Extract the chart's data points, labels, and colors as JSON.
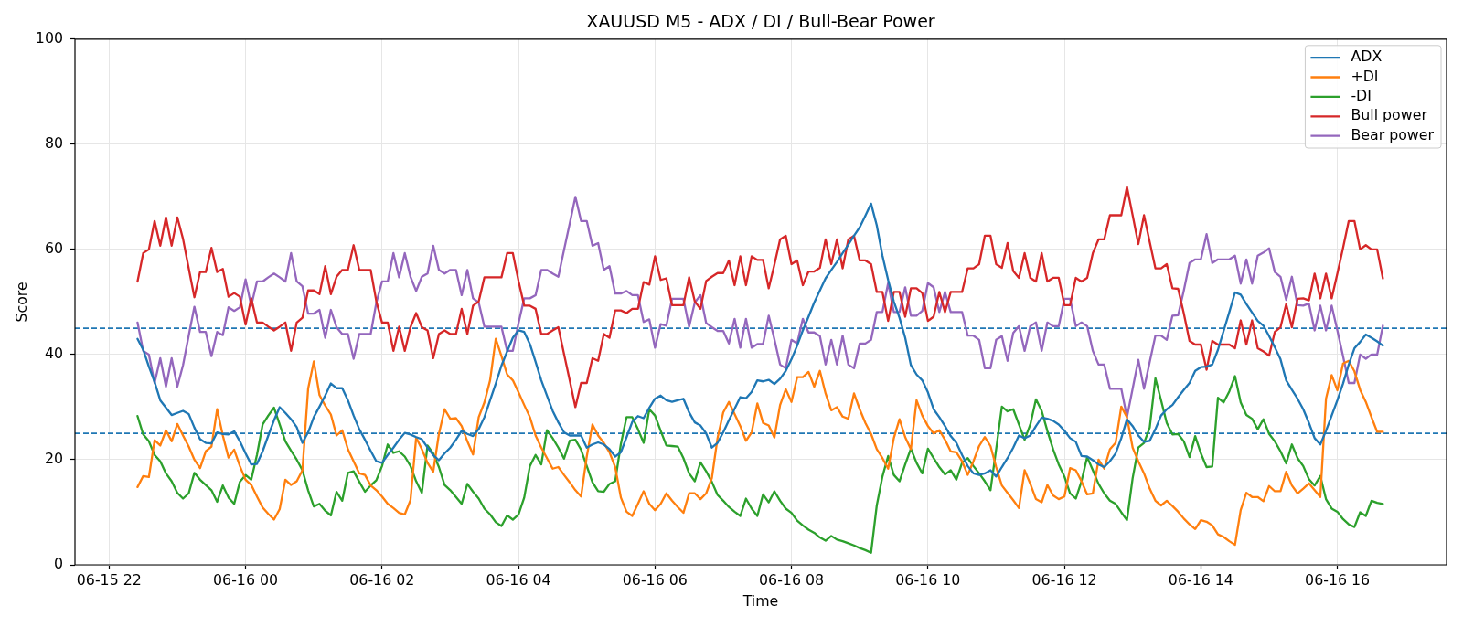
{
  "chart_data": {
    "type": "line",
    "title": "XAUUSD M5 - ADX / DI / Bull-Bear Power",
    "xlabel": "Time",
    "ylabel": "Score",
    "x": [
      "--06-15T22:25",
      "--06-15T22:30",
      "--06-15T22:35",
      "--06-15T22:40",
      "--06-15T22:45",
      "--06-15T22:50",
      "--06-15T22:55",
      "--06-15T23:00",
      "--06-15T23:05",
      "--06-15T23:10",
      "--06-15T23:15",
      "--06-15T23:20",
      "--06-15T23:25",
      "--06-15T23:30",
      "--06-15T23:35",
      "--06-15T23:40",
      "--06-15T23:45",
      "--06-15T23:50",
      "--06-15T23:55",
      "--06-16T00:00",
      "--06-16T00:05",
      "--06-16T00:10",
      "--06-16T00:15",
      "--06-16T00:20",
      "--06-16T00:25",
      "--06-16T00:30",
      "--06-16T00:35",
      "--06-16T00:40",
      "--06-16T00:45",
      "--06-16T00:50",
      "--06-16T00:55",
      "--06-16T01:00",
      "--06-16T01:05",
      "--06-16T01:10",
      "--06-16T01:15",
      "--06-16T01:20",
      "--06-16T01:25",
      "--06-16T01:30",
      "--06-16T01:35",
      "--06-16T01:40",
      "--06-16T01:45",
      "--06-16T01:50",
      "--06-16T01:55",
      "--06-16T02:00",
      "--06-16T02:05",
      "--06-16T02:10",
      "--06-16T02:15",
      "--06-16T02:20",
      "--06-16T02:25",
      "--06-16T02:30",
      "--06-16T02:35",
      "--06-16T02:40",
      "--06-16T02:45",
      "--06-16T02:50",
      "--06-16T02:55",
      "--06-16T03:00",
      "--06-16T03:05",
      "--06-16T03:10",
      "--06-16T03:15",
      "--06-16T03:20",
      "--06-16T03:25",
      "--06-16T03:30",
      "--06-16T03:35",
      "--06-16T03:40",
      "--06-16T03:45",
      "--06-16T03:50",
      "--06-16T03:55",
      "--06-16T04:00",
      "--06-16T04:05",
      "--06-16T04:10",
      "--06-16T04:15",
      "--06-16T04:20",
      "--06-16T04:25",
      "--06-16T04:30",
      "--06-16T04:35",
      "--06-16T04:40",
      "--06-16T04:45",
      "--06-16T04:50",
      "--06-16T04:55",
      "--06-16T05:00",
      "--06-16T05:05",
      "--06-16T05:10",
      "--06-16T05:15",
      "--06-16T05:20",
      "--06-16T05:25",
      "--06-16T05:30",
      "--06-16T05:35",
      "--06-16T05:40",
      "--06-16T05:45",
      "--06-16T05:50",
      "--06-16T05:55",
      "--06-16T06:00",
      "--06-16T06:05",
      "--06-16T06:10",
      "--06-16T06:15",
      "--06-16T06:20",
      "--06-16T06:25",
      "--06-16T06:30",
      "--06-16T06:35",
      "--06-16T06:40",
      "--06-16T06:45",
      "--06-16T06:50",
      "--06-16T06:55",
      "--06-16T07:00",
      "--06-16T07:05",
      "--06-16T07:10",
      "--06-16T07:15",
      "--06-16T07:20",
      "--06-16T07:25",
      "--06-16T07:30",
      "--06-16T07:35",
      "--06-16T07:40",
      "--06-16T07:45",
      "--06-16T07:50",
      "--06-16T07:55",
      "--06-16T08:00",
      "--06-16T08:05",
      "--06-16T08:10",
      "--06-16T08:15",
      "--06-16T08:20",
      "--06-16T08:25",
      "--06-16T08:30",
      "--06-16T08:35",
      "--06-16T08:40",
      "--06-16T08:45",
      "--06-16T08:50",
      "--06-16T08:55",
      "--06-16T09:00",
      "--06-16T09:05",
      "--06-16T09:10",
      "--06-16T09:15",
      "--06-16T09:20",
      "--06-16T09:25",
      "--06-16T09:30",
      "--06-16T09:35",
      "--06-16T09:40",
      "--06-16T09:45",
      "--06-16T09:50",
      "--06-16T09:55",
      "--06-16T10:00",
      "--06-16T10:05",
      "--06-16T10:10",
      "--06-16T10:15",
      "--06-16T10:20",
      "--06-16T10:25",
      "--06-16T10:30",
      "--06-16T10:35",
      "--06-16T10:40",
      "--06-16T10:45",
      "--06-16T10:50",
      "--06-16T10:55",
      "--06-16T11:00",
      "--06-16T11:05",
      "--06-16T11:10",
      "--06-16T11:15",
      "--06-16T11:20",
      "--06-16T11:25",
      "--06-16T11:30",
      "--06-16T11:35",
      "--06-16T11:40",
      "--06-16T11:45",
      "--06-16T11:50",
      "--06-16T11:55",
      "--06-16T12:00",
      "--06-16T12:05",
      "--06-16T12:10",
      "--06-16T12:15",
      "--06-16T12:20",
      "--06-16T12:25",
      "--06-16T12:30",
      "--06-16T12:35",
      "--06-16T12:40",
      "--06-16T12:45",
      "--06-16T12:50",
      "--06-16T12:55",
      "--06-16T13:00",
      "--06-16T13:05",
      "--06-16T13:10",
      "--06-16T13:15",
      "--06-16T13:20",
      "--06-16T13:25",
      "--06-16T13:30",
      "--06-16T13:35",
      "--06-16T13:40",
      "--06-16T13:45",
      "--06-16T13:50",
      "--06-16T13:55",
      "--06-16T14:00",
      "--06-16T14:05",
      "--06-16T14:10",
      "--06-16T14:15",
      "--06-16T14:20",
      "--06-16T14:25",
      "--06-16T14:30",
      "--06-16T14:35",
      "--06-16T14:40",
      "--06-16T14:45",
      "--06-16T14:50",
      "--06-16T14:55",
      "--06-16T15:00",
      "--06-16T15:05",
      "--06-16T15:10",
      "--06-16T15:15",
      "--06-16T15:20",
      "--06-16T15:25",
      "--06-16T15:30",
      "--06-16T15:35",
      "--06-16T15:40",
      "--06-16T15:45",
      "--06-16T15:50",
      "--06-16T15:55",
      "--06-16T16:00",
      "--06-16T16:05",
      "--06-16T16:10",
      "--06-16T16:15",
      "--06-16T16:20",
      "--06-16T16:25",
      "--06-16T16:30",
      "--06-16T16:35",
      "--06-16T16:40"
    ],
    "series": [
      {
        "name": "ADX",
        "color": "#1f77b4",
        "values": [
          43.0,
          40.9,
          37.7,
          34.8,
          31.3,
          29.9,
          28.5,
          28.9,
          29.3,
          28.7,
          26.1,
          23.9,
          23.2,
          23.1,
          25.2,
          24.9,
          24.8,
          25.4,
          23.5,
          21.2,
          19.1,
          19.2,
          21.6,
          24.6,
          27.5,
          30.0,
          28.9,
          27.7,
          26.2,
          23.2,
          25.2,
          28.1,
          30.1,
          32.2,
          34.5,
          33.6,
          33.6,
          31.3,
          28.4,
          25.8,
          23.8,
          21.7,
          19.7,
          19.4,
          20.9,
          22.3,
          23.8,
          25.1,
          24.8,
          24.3,
          23.9,
          22.3,
          20.9,
          19.9,
          21.2,
          22.3,
          23.8,
          25.5,
          24.9,
          24.5,
          25.8,
          28.1,
          31.3,
          34.5,
          37.9,
          40.6,
          43.2,
          44.6,
          44.3,
          42.0,
          38.6,
          35.1,
          32.2,
          29.3,
          27.1,
          25.2,
          24.6,
          24.6,
          24.6,
          22.3,
          22.9,
          23.3,
          22.9,
          22.0,
          20.6,
          21.4,
          24.3,
          27.2,
          28.3,
          27.9,
          29.9,
          31.6,
          32.2,
          31.3,
          31.0,
          31.3,
          31.6,
          29.0,
          27.1,
          26.5,
          25.0,
          22.3,
          23.2,
          25.2,
          27.5,
          29.7,
          31.9,
          31.7,
          32.9,
          35.1,
          34.9,
          35.2,
          34.4,
          35.4,
          36.9,
          39.1,
          41.7,
          44.6,
          47.2,
          49.9,
          52.2,
          54.5,
          56.1,
          57.6,
          59.3,
          60.9,
          62.6,
          64.2,
          66.4,
          68.7,
          64.6,
          58.8,
          54.2,
          50.1,
          47.0,
          43.2,
          38.0,
          36.2,
          35.1,
          32.8,
          29.6,
          28.1,
          26.4,
          24.5,
          23.2,
          20.9,
          18.8,
          17.4,
          17.1,
          17.4,
          18.0,
          16.8,
          18.6,
          20.3,
          22.3,
          24.6,
          24.1,
          24.6,
          26.4,
          28.0,
          27.8,
          27.4,
          26.7,
          25.5,
          24.1,
          23.4,
          20.7,
          20.6,
          19.9,
          19.1,
          18.6,
          19.7,
          21.2,
          24.1,
          27.7,
          26.4,
          24.6,
          23.4,
          23.6,
          25.8,
          28.4,
          29.6,
          30.4,
          31.9,
          33.3,
          34.6,
          36.9,
          37.6,
          37.7,
          38.1,
          40.9,
          44.5,
          48.1,
          51.8,
          51.4,
          49.6,
          48.0,
          46.4,
          45.5,
          43.5,
          41.4,
          39.1,
          35.1,
          33.3,
          31.6,
          29.6,
          27.0,
          24.1,
          22.9,
          25.5,
          28.4,
          31.3,
          34.5,
          38.1,
          41.2,
          42.4,
          43.8,
          43.2,
          42.5,
          41.7
        ]
      },
      {
        "name": "+DI",
        "color": "#ff7f0e",
        "values": [
          14.8,
          16.9,
          16.7,
          23.7,
          22.7,
          25.6,
          23.5,
          26.8,
          24.6,
          22.5,
          20.0,
          18.4,
          21.6,
          22.5,
          29.6,
          24.6,
          20.4,
          21.9,
          18.8,
          16.2,
          15.2,
          13.0,
          10.9,
          9.7,
          8.6,
          10.6,
          16.2,
          15.2,
          15.9,
          18.0,
          33.5,
          38.7,
          32.3,
          30.3,
          28.6,
          24.6,
          25.6,
          22.0,
          19.7,
          17.4,
          17.1,
          15.1,
          14.2,
          13.0,
          11.6,
          10.8,
          9.9,
          9.6,
          12.3,
          24.2,
          22.0,
          19.4,
          17.7,
          24.9,
          29.6,
          27.8,
          27.9,
          26.4,
          23.5,
          21.0,
          28.1,
          30.9,
          35.1,
          43.0,
          39.7,
          36.2,
          35.1,
          32.8,
          30.4,
          28.1,
          24.6,
          22.3,
          20.3,
          18.3,
          18.6,
          17.1,
          15.7,
          14.2,
          13.0,
          20.6,
          26.7,
          24.6,
          23.2,
          21.4,
          18.6,
          12.8,
          10.1,
          9.3,
          11.6,
          14.0,
          11.6,
          10.4,
          11.6,
          13.6,
          12.2,
          11.0,
          9.9,
          13.6,
          13.6,
          12.5,
          13.6,
          16.5,
          24.1,
          29.0,
          31.0,
          28.7,
          26.4,
          23.6,
          25.2,
          30.7,
          27.0,
          26.5,
          24.2,
          30.4,
          33.4,
          31.0,
          35.7,
          35.7,
          36.7,
          33.9,
          36.9,
          32.6,
          29.4,
          30.0,
          28.2,
          27.8,
          32.6,
          29.6,
          27.0,
          24.9,
          22.0,
          20.3,
          18.3,
          24.1,
          27.7,
          24.3,
          22.0,
          31.3,
          28.4,
          26.4,
          25.0,
          25.6,
          23.8,
          21.6,
          21.4,
          19.7,
          17.1,
          19.7,
          22.6,
          24.3,
          22.6,
          18.6,
          15.1,
          13.7,
          12.3,
          10.8,
          18.0,
          15.4,
          12.5,
          11.9,
          15.2,
          13.2,
          12.5,
          13.0,
          18.4,
          18.0,
          15.9,
          13.4,
          13.6,
          20.0,
          18.3,
          22.0,
          23.2,
          30.1,
          28.1,
          22.3,
          19.7,
          17.4,
          14.5,
          12.2,
          11.3,
          12.2,
          11.2,
          10.1,
          8.8,
          7.7,
          6.8,
          8.5,
          8.2,
          7.5,
          5.8,
          5.3,
          4.5,
          3.8,
          10.4,
          13.7,
          12.9,
          12.9,
          12.1,
          15.0,
          14.0,
          14.0,
          17.7,
          15.1,
          13.6,
          14.5,
          15.5,
          14.2,
          12.9,
          31.6,
          36.1,
          33.2,
          38.3,
          38.8,
          36.8,
          33.3,
          31.0,
          28.1,
          25.3,
          25.3
        ]
      },
      {
        "name": "-DI",
        "color": "#2ca02c",
        "values": [
          28.3,
          24.8,
          23.5,
          20.9,
          19.7,
          17.4,
          15.9,
          13.7,
          12.6,
          13.6,
          17.5,
          16.2,
          15.2,
          14.2,
          12.0,
          15.1,
          12.8,
          11.6,
          15.8,
          17.1,
          16.2,
          20.9,
          26.7,
          28.4,
          29.9,
          26.7,
          23.5,
          21.7,
          20.0,
          18.0,
          14.2,
          11.1,
          11.6,
          10.3,
          9.4,
          13.9,
          12.2,
          17.5,
          17.8,
          15.8,
          13.9,
          15.1,
          16.1,
          18.8,
          22.9,
          21.3,
          21.6,
          20.6,
          18.8,
          15.9,
          13.7,
          22.7,
          21.2,
          18.6,
          15.2,
          14.2,
          12.9,
          11.6,
          15.4,
          13.9,
          12.6,
          10.7,
          9.6,
          8.1,
          7.4,
          9.4,
          8.6,
          9.6,
          12.8,
          18.8,
          20.9,
          19.1,
          25.6,
          24.1,
          22.3,
          20.2,
          23.6,
          23.8,
          21.9,
          18.8,
          15.7,
          14.0,
          13.9,
          15.4,
          15.9,
          23.0,
          28.1,
          28.1,
          25.8,
          23.2,
          29.6,
          28.4,
          25.5,
          22.7,
          22.6,
          22.5,
          20.3,
          17.4,
          15.9,
          19.5,
          17.8,
          15.8,
          13.3,
          12.2,
          11.0,
          10.1,
          9.3,
          12.6,
          10.7,
          9.3,
          13.4,
          11.9,
          14.0,
          12.2,
          10.7,
          9.9,
          8.4,
          7.5,
          6.7,
          6.1,
          5.2,
          4.6,
          5.5,
          4.8,
          4.5,
          4.1,
          3.7,
          3.2,
          2.8,
          2.3,
          11.3,
          16.8,
          20.7,
          17.1,
          15.9,
          19.1,
          22.1,
          19.4,
          17.4,
          22.1,
          20.3,
          18.6,
          17.2,
          18.0,
          16.2,
          19.4,
          20.3,
          18.8,
          17.4,
          15.9,
          14.2,
          22.0,
          30.1,
          29.2,
          29.6,
          26.7,
          23.8,
          26.7,
          31.5,
          29.3,
          25.5,
          22.0,
          19.1,
          16.8,
          13.6,
          12.6,
          15.9,
          20.5,
          18.0,
          15.4,
          13.6,
          12.2,
          11.6,
          10.0,
          8.5,
          16.5,
          22.3,
          23.2,
          26.1,
          35.5,
          31.3,
          27.0,
          24.8,
          24.9,
          23.5,
          20.5,
          24.5,
          21.2,
          18.6,
          18.7,
          31.8,
          30.9,
          33.0,
          35.9,
          30.9,
          28.5,
          27.8,
          25.8,
          27.7,
          24.9,
          23.5,
          21.6,
          19.3,
          22.9,
          20.3,
          18.8,
          16.3,
          15.1,
          16.9,
          12.5,
          10.7,
          10.1,
          8.7,
          7.7,
          7.2,
          10.0,
          9.3,
          12.2,
          11.8,
          11.6
        ]
      },
      {
        "name": "Bull power",
        "color": "#d62728",
        "values": [
          53.9,
          59.3,
          60.0,
          65.4,
          60.7,
          66.1,
          60.7,
          66.1,
          62.0,
          56.4,
          50.9,
          55.7,
          55.7,
          60.3,
          55.7,
          56.3,
          51.0,
          51.7,
          51.0,
          45.7,
          50.7,
          46.1,
          46.1,
          45.3,
          44.6,
          45.3,
          46.1,
          40.7,
          46.1,
          47.0,
          52.2,
          52.2,
          51.5,
          56.8,
          51.5,
          54.8,
          56.1,
          56.1,
          60.8,
          56.1,
          56.1,
          56.1,
          50.1,
          46.1,
          46.1,
          40.7,
          45.3,
          40.7,
          45.2,
          47.9,
          45.2,
          44.6,
          39.3,
          43.9,
          44.6,
          43.9,
          43.9,
          48.7,
          43.9,
          49.3,
          50.1,
          54.7,
          54.7,
          54.7,
          54.7,
          59.3,
          59.3,
          54.0,
          49.3,
          49.3,
          48.7,
          43.9,
          43.9,
          44.6,
          45.2,
          40.1,
          35.1,
          30.0,
          34.6,
          34.6,
          39.3,
          38.8,
          43.9,
          43.2,
          48.4,
          48.4,
          47.9,
          48.7,
          48.7,
          53.8,
          53.3,
          58.7,
          54.2,
          54.5,
          49.4,
          49.4,
          49.4,
          54.7,
          50.1,
          48.7,
          54.0,
          54.8,
          55.5,
          55.5,
          57.9,
          53.2,
          58.7,
          53.2,
          58.7,
          58.0,
          58.0,
          52.6,
          57.1,
          61.9,
          62.6,
          57.2,
          57.9,
          53.2,
          55.8,
          55.8,
          56.5,
          61.9,
          57.2,
          61.9,
          56.4,
          61.9,
          62.6,
          57.9,
          57.9,
          57.2,
          51.9,
          51.9,
          46.4,
          51.9,
          51.9,
          47.2,
          52.6,
          52.6,
          51.7,
          46.4,
          47.2,
          51.9,
          48.1,
          51.9,
          51.9,
          51.9,
          56.4,
          56.4,
          57.2,
          62.6,
          62.6,
          57.2,
          56.5,
          61.2,
          55.9,
          54.6,
          59.3,
          54.6,
          53.9,
          59.3,
          53.9,
          54.6,
          54.6,
          49.4,
          49.4,
          54.6,
          53.9,
          54.6,
          59.3,
          61.9,
          61.9,
          66.5,
          66.5,
          66.5,
          71.9,
          66.5,
          61.0,
          66.5,
          61.4,
          56.4,
          56.4,
          57.2,
          52.6,
          52.5,
          47.8,
          42.6,
          41.9,
          41.9,
          37.1,
          42.6,
          41.9,
          41.9,
          41.9,
          41.2,
          46.5,
          41.9,
          46.5,
          41.2,
          40.6,
          39.8,
          44.3,
          45.2,
          49.6,
          45.2,
          50.6,
          50.7,
          50.3,
          55.4,
          50.7,
          55.4,
          50.7,
          55.4,
          60.3,
          65.4,
          65.4,
          60.0,
          60.8,
          60.0,
          60.0,
          54.5
        ]
      },
      {
        "name": "Bear power",
        "color": "#9467bd",
        "values": [
          46.1,
          40.7,
          40.0,
          34.6,
          39.3,
          33.9,
          39.3,
          33.9,
          38.0,
          43.6,
          49.1,
          44.3,
          44.3,
          39.7,
          44.3,
          43.7,
          49.0,
          48.3,
          49.0,
          54.3,
          49.3,
          53.9,
          53.9,
          54.7,
          55.4,
          54.7,
          53.9,
          59.3,
          53.9,
          53.0,
          47.8,
          47.8,
          48.5,
          43.2,
          48.5,
          45.2,
          43.9,
          43.9,
          39.2,
          43.9,
          43.9,
          43.9,
          49.9,
          53.9,
          53.9,
          59.3,
          54.7,
          59.3,
          54.8,
          52.1,
          54.8,
          55.4,
          60.7,
          56.1,
          55.4,
          56.1,
          56.1,
          51.3,
          56.1,
          50.7,
          49.9,
          45.3,
          45.3,
          45.3,
          45.3,
          40.7,
          40.7,
          46.0,
          50.7,
          50.7,
          51.3,
          56.1,
          56.1,
          55.4,
          54.8,
          59.9,
          64.9,
          70.0,
          65.4,
          65.4,
          60.7,
          61.2,
          56.1,
          56.8,
          51.6,
          51.6,
          52.1,
          51.3,
          51.3,
          46.2,
          46.7,
          41.3,
          45.8,
          45.5,
          50.6,
          50.6,
          50.6,
          45.3,
          49.9,
          51.3,
          46.0,
          45.2,
          44.5,
          44.5,
          42.1,
          46.8,
          41.3,
          46.8,
          41.3,
          42.0,
          42.0,
          47.4,
          42.9,
          38.1,
          37.4,
          42.8,
          42.1,
          46.8,
          44.2,
          44.2,
          43.5,
          38.1,
          42.8,
          38.1,
          43.6,
          38.1,
          37.4,
          42.1,
          42.1,
          42.8,
          48.1,
          48.1,
          53.6,
          48.1,
          48.1,
          52.8,
          47.4,
          47.4,
          48.3,
          53.6,
          52.8,
          48.1,
          51.9,
          48.1,
          48.1,
          48.1,
          43.6,
          43.6,
          42.8,
          37.4,
          37.4,
          42.8,
          43.5,
          38.8,
          44.1,
          45.4,
          40.7,
          45.4,
          46.1,
          40.7,
          46.1,
          45.4,
          45.4,
          50.6,
          50.6,
          45.4,
          46.1,
          45.4,
          40.7,
          38.1,
          38.1,
          33.5,
          33.5,
          33.5,
          28.1,
          33.5,
          39.0,
          33.5,
          38.6,
          43.6,
          43.6,
          42.8,
          47.4,
          47.5,
          52.2,
          57.4,
          58.1,
          58.1,
          62.9,
          57.4,
          58.1,
          58.1,
          58.1,
          58.8,
          53.5,
          58.1,
          53.5,
          58.8,
          59.4,
          60.2,
          55.7,
          54.8,
          50.4,
          54.8,
          49.4,
          49.3,
          49.7,
          44.6,
          49.3,
          44.6,
          49.3,
          44.6,
          39.7,
          34.6,
          34.6,
          40.0,
          39.2,
          40.0,
          40.0,
          45.5
        ]
      }
    ],
    "xlim": [
      "--06-15T21:30",
      "--06-16T17:36"
    ],
    "xticks": [
      {
        "value": "--06-15T22:00",
        "label": "06-15 22"
      },
      {
        "value": "--06-16T00:00",
        "label": "06-16 00"
      },
      {
        "value": "--06-16T02:00",
        "label": "06-16 02"
      },
      {
        "value": "--06-16T04:00",
        "label": "06-16 04"
      },
      {
        "value": "--06-16T06:00",
        "label": "06-16 06"
      },
      {
        "value": "--06-16T08:00",
        "label": "06-16 08"
      },
      {
        "value": "--06-16T10:00",
        "label": "06-16 10"
      },
      {
        "value": "--06-16T12:00",
        "label": "06-16 12"
      },
      {
        "value": "--06-16T14:00",
        "label": "06-16 14"
      },
      {
        "value": "--06-16T16:00",
        "label": "06-16 16"
      }
    ],
    "ylim": [
      0,
      100
    ],
    "yticks": [
      0,
      20,
      40,
      60,
      80,
      100
    ],
    "grid": true,
    "legend": "top right",
    "ref_lines": [
      {
        "axis": "y",
        "value": 45,
        "color": "#1f77b4",
        "line_style": "dashed"
      },
      {
        "axis": "y",
        "value": 25,
        "color": "#1f77b4",
        "line_style": "dashed"
      }
    ]
  }
}
